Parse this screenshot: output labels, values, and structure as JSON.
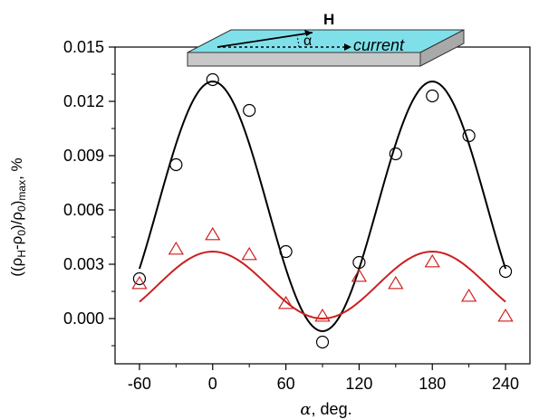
{
  "chart_data": {
    "type": "scatter",
    "xlabel_symbol": "α",
    "xlabel_text": ", deg.",
    "ylabel": "((ρH-ρ0)/ρ0)max, %",
    "ylabel_parts": {
      "open": "((ρ",
      "sub1": "H",
      "mid": "-ρ",
      "sub2": "0",
      "mid2": ")/ρ",
      "sub3": "0",
      "close": ")",
      "sub4": "max",
      "tail": ", %"
    },
    "xlim": [
      -80,
      260
    ],
    "ylim": [
      -0.0025,
      0.015
    ],
    "xticks": [
      -60,
      0,
      60,
      120,
      180,
      240
    ],
    "yticks": [
      0.0,
      0.003,
      0.006,
      0.009,
      0.012,
      0.015
    ],
    "ytick_labels": [
      "0.000",
      "0.003",
      "0.006",
      "0.009",
      "0.012",
      "0.015"
    ],
    "grid": false,
    "series": [
      {
        "marker": "circle",
        "color": "#000000",
        "x": [
          -60,
          -30,
          0,
          30,
          60,
          90,
          120,
          150,
          180,
          210,
          240
        ],
        "y": [
          0.0022,
          0.0085,
          0.0132,
          0.0115,
          0.0037,
          -0.0013,
          0.0031,
          0.0091,
          0.0123,
          0.0101,
          0.0026
        ]
      },
      {
        "marker": "triangle",
        "color": "#cc1f1f",
        "x": [
          -60,
          -30,
          0,
          30,
          60,
          90,
          120,
          150,
          180,
          210,
          240
        ],
        "y": [
          0.0019,
          0.0038,
          0.0046,
          0.0035,
          0.0008,
          0.0001,
          0.0023,
          0.0019,
          0.0031,
          0.0012,
          0.0001
        ]
      }
    ],
    "fits": [
      {
        "color": "#000000",
        "amplitude": 0.0138,
        "offset": -0.0007,
        "xrange": [
          -60,
          240
        ]
      },
      {
        "color": "#cc1f1f",
        "amplitude": 0.0037,
        "offset": 0.0,
        "xrange": [
          -60,
          240
        ]
      }
    ],
    "inset": {
      "field_label": "H",
      "angle_label": "α",
      "current_label": "current",
      "surface_color": "#7fe0ea",
      "side_color": "#c8c8c8"
    }
  }
}
